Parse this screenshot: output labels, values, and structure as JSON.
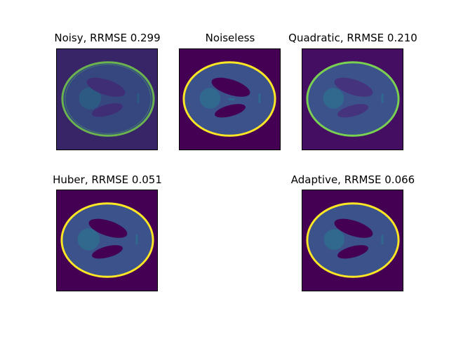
{
  "figure": {
    "colormap": "viridis",
    "colors": {
      "background": "#440154",
      "noisy_background": "#3e2a6e",
      "body": "#3b528b",
      "inner_circle": "#31688e",
      "dark_ellipses": "#440154",
      "rim_clean": "#fde725",
      "rim_noisy": "#7ad151"
    },
    "panels": [
      {
        "title": "Noisy, RRMSE 0.299",
        "variant": "noisy"
      },
      {
        "title": "Noiseless",
        "variant": "noiseless"
      },
      {
        "title": "Quadratic, RRMSE 0.210",
        "variant": "quadratic"
      },
      {
        "title": "Huber, RRMSE 0.051",
        "variant": "huber"
      },
      {
        "title": "Adaptive, RRMSE 0.066",
        "variant": "adaptive"
      }
    ]
  }
}
